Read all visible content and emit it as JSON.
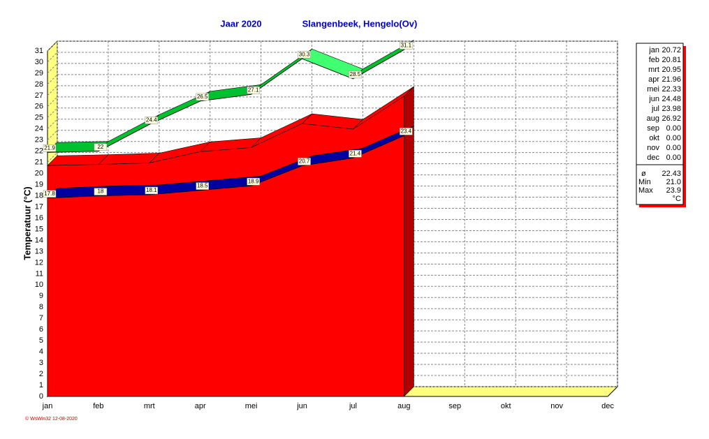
{
  "chart_data": {
    "type": "area",
    "title": "Jaar  2020",
    "subtitle": "Slangenbeek, Hengelo(Ov)",
    "y_label": "Temperatuur  (°C)",
    "footer": "© WsWin32  12-08-2020",
    "categories": [
      "jan",
      "feb",
      "mrt",
      "apr",
      "mei",
      "jun",
      "jul",
      "aug",
      "sep",
      "okt",
      "nov",
      "dec"
    ],
    "ylim": [
      0,
      31
    ],
    "yticks": [
      0,
      1,
      2,
      3,
      4,
      5,
      6,
      7,
      8,
      9,
      10,
      11,
      12,
      13,
      14,
      15,
      16,
      17,
      18,
      19,
      20,
      21,
      22,
      23,
      24,
      25,
      26,
      27,
      28,
      29,
      30,
      31
    ],
    "grid": true,
    "series": [
      {
        "color": "#ff0000",
        "values": [
          20.72,
          20.81,
          20.95,
          21.96,
          22.33,
          24.48,
          23.98,
          26.92,
          null,
          null,
          null,
          null
        ]
      },
      {
        "color": "#00ff40",
        "values": [
          21.9,
          22.0,
          24.4,
          26.5,
          27.1,
          30.3,
          28.5,
          31.1,
          null,
          null,
          null,
          null
        ]
      },
      {
        "color": "#0000ff",
        "values": [
          17.8,
          18.0,
          18.1,
          18.5,
          18.9,
          20.7,
          21.4,
          23.4,
          null,
          null,
          null,
          null
        ]
      }
    ],
    "summary": {
      "rows": [
        [
          "jan",
          "20.72"
        ],
        [
          "feb",
          "20.81"
        ],
        [
          "mrt",
          "20.95"
        ],
        [
          "apr",
          "21.96"
        ],
        [
          "mei",
          "22.33"
        ],
        [
          "jun",
          "24.48"
        ],
        [
          "jul",
          "23.98"
        ],
        [
          "aug",
          "26.92"
        ],
        [
          "sep",
          "0.00"
        ],
        [
          "okt",
          "0.00"
        ],
        [
          "nov",
          "0.00"
        ],
        [
          "dec",
          "0.00"
        ]
      ],
      "stats": [
        [
          "ø",
          "22.43"
        ],
        [
          "Min",
          "21.0"
        ],
        [
          "Max",
          "23.9"
        ]
      ],
      "unit": "°C"
    }
  }
}
